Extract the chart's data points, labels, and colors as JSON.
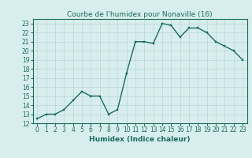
{
  "x": [
    0,
    1,
    2,
    3,
    4,
    5,
    6,
    7,
    8,
    9,
    10,
    11,
    12,
    13,
    14,
    15,
    16,
    17,
    18,
    19,
    20,
    21,
    22,
    23
  ],
  "y": [
    12.5,
    13.0,
    13.0,
    13.5,
    14.5,
    15.5,
    15.0,
    15.0,
    13.0,
    13.5,
    17.5,
    21.0,
    21.0,
    20.8,
    23.0,
    22.8,
    21.5,
    22.5,
    22.5,
    22.0,
    21.0,
    20.5,
    20.0,
    19.0
  ],
  "line_color": "#1a6b5a",
  "marker_color": "#1a6b5a",
  "bg_color": "#d8eeee",
  "grid_color": "#b8d8d8",
  "title": "Courbe de l'humidex pour Nonaville (16)",
  "xlabel": "Humidex (Indice chaleur)",
  "ylabel": "",
  "xlim": [
    -0.5,
    23.5
  ],
  "ylim": [
    12,
    23.5
  ],
  "yticks": [
    12,
    13,
    14,
    15,
    16,
    17,
    18,
    19,
    20,
    21,
    22,
    23
  ],
  "xticks": [
    0,
    1,
    2,
    3,
    4,
    5,
    6,
    7,
    8,
    9,
    10,
    11,
    12,
    13,
    14,
    15,
    16,
    17,
    18,
    19,
    20,
    21,
    22,
    23
  ],
  "title_fontsize": 6.5,
  "label_fontsize": 6.5,
  "tick_fontsize": 5.5,
  "linewidth": 1.0,
  "markersize": 2.0
}
